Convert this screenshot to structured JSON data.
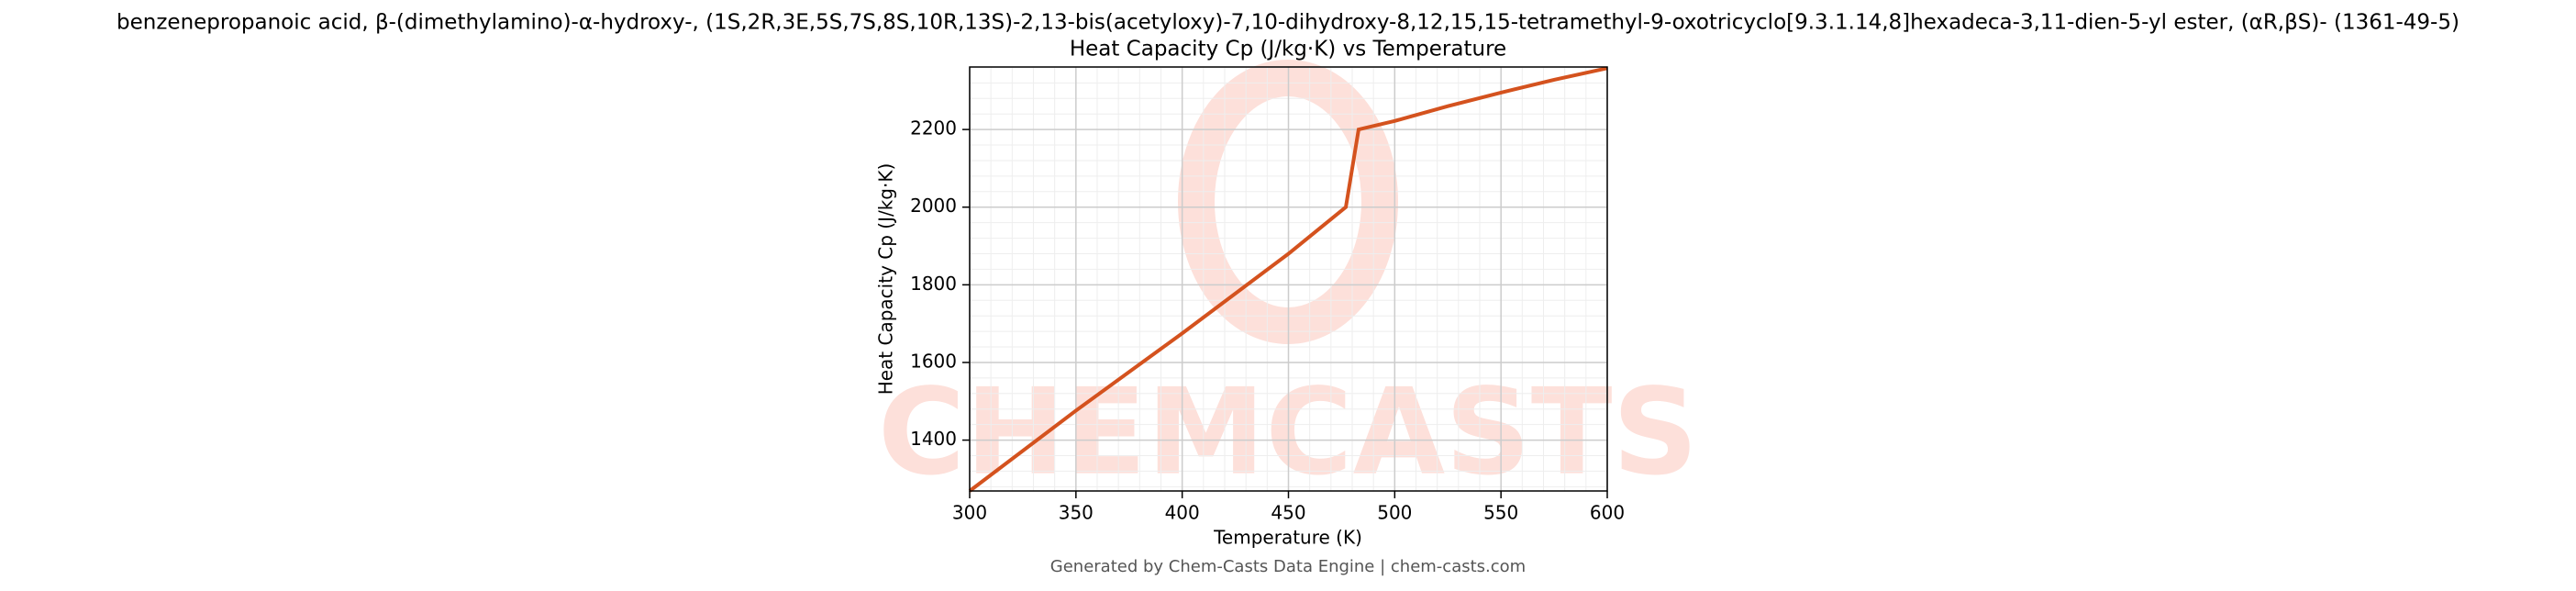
{
  "chart_data": {
    "type": "line",
    "title": "benzenepropanoic acid, β-(dimethylamino)-α-hydroxy-, (1S,2R,3E,5S,7S,8S,10R,13S)-2,13-bis(acetyloxy)-7,10-dihydroxy-8,12,15,15-tetramethyl-9-oxotricyclo[9.3.1.14,8]hexadeca-3,11-dien-5-yl ester, (αR,βS)- (1361-49-5)",
    "subtitle": "Heat Capacity Cp (J/kg·K) vs Temperature",
    "x_label": "Temperature (K)",
    "y_label": "Heat Capacity Cp (J/kg·K)",
    "footer": "Generated by Chem-Casts Data Engine | chem-casts.com",
    "watermark": "CHEMCASTS",
    "x": [
      300,
      350,
      400,
      450,
      477,
      483,
      500,
      525,
      550,
      575,
      600
    ],
    "series": [
      {
        "name": "Cp",
        "color": "#d4521e",
        "values": [
          1269,
          1476,
          1675,
          1880,
          2000,
          2200,
          2222,
          2260,
          2295,
          2328,
          2358
        ]
      }
    ],
    "xlim": [
      300,
      600
    ],
    "xticks": [
      300,
      350,
      400,
      450,
      500,
      550,
      600
    ],
    "ylim": [
      1269,
      2361
    ],
    "yticks": [
      1400,
      1600,
      1800,
      2000,
      2200
    ],
    "grid": true
  }
}
